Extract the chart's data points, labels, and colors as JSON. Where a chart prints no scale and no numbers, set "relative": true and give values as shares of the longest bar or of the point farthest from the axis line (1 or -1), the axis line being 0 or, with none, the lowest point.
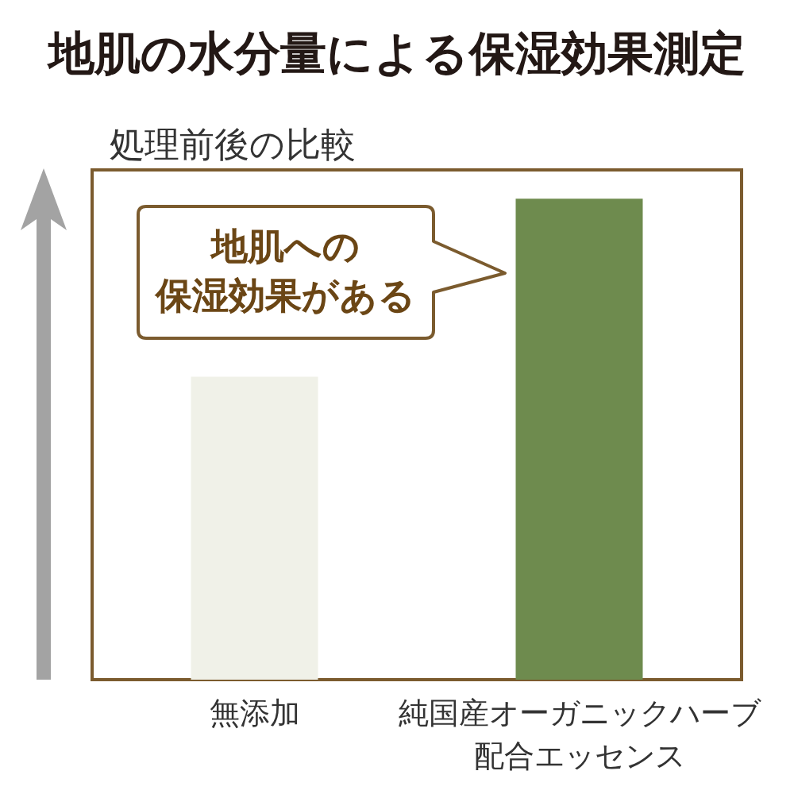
{
  "chart_data": {
    "type": "bar",
    "title": "地肌の水分量による保湿効果測定",
    "subtitle": "処理前後の比較",
    "categories": [
      "無添加",
      "純国産オーガニックハーブ配合エッセンス"
    ],
    "values": [
      0.63,
      1
    ],
    "colors": [
      "#f0f1e8",
      "#6e8b4e"
    ],
    "relative": true,
    "annotations": [
      "地肌への保湿効果がある"
    ]
  }
}
